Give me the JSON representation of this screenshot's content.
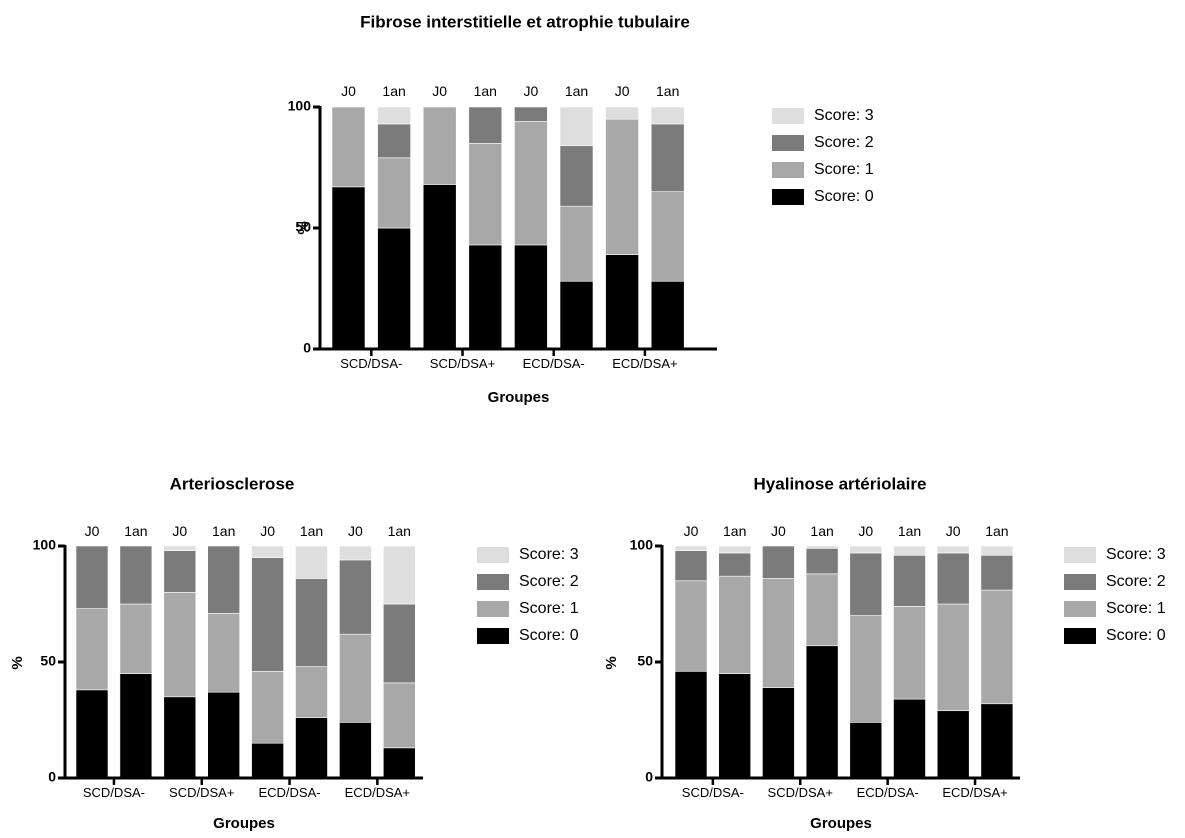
{
  "chart_data": [
    {
      "type": "bar",
      "stacked": true,
      "title": "Fibrose interstitielle et atrophie tubulaire",
      "xlabel": "Groupes",
      "ylabel": "%",
      "ylim": [
        0,
        100
      ],
      "yticks": [
        "0",
        "50",
        "100"
      ],
      "bar_labels": [
        "J0",
        "1an",
        "J0",
        "1an",
        "J0",
        "1an",
        "J0",
        "1an"
      ],
      "groups": [
        "SCD/DSA-",
        "SCD/DSA+",
        "ECD/DSA-",
        "ECD/DSA+"
      ],
      "legend_position": "right",
      "series": [
        {
          "name": "Score: 0",
          "color": "#000000",
          "values": [
            67,
            50,
            68,
            43,
            43,
            28,
            39,
            28
          ]
        },
        {
          "name": "Score: 1",
          "color": "#a8a8a8",
          "values": [
            33,
            29,
            32,
            42,
            51,
            31,
            56,
            37
          ]
        },
        {
          "name": "Score: 2",
          "color": "#7b7b7b",
          "values": [
            0,
            14,
            0,
            15,
            6,
            25,
            0,
            28
          ]
        },
        {
          "name": "Score: 3",
          "color": "#dedede",
          "values": [
            0,
            7,
            0,
            0,
            0,
            16,
            5,
            7
          ]
        }
      ]
    },
    {
      "type": "bar",
      "stacked": true,
      "title": "Arteriosclerose",
      "xlabel": "Groupes",
      "ylabel": "%",
      "ylim": [
        0,
        100
      ],
      "yticks": [
        "0",
        "50",
        "100"
      ],
      "bar_labels": [
        "J0",
        "1an",
        "J0",
        "1an",
        "J0",
        "1an",
        "J0",
        "1an"
      ],
      "groups": [
        "SCD/DSA-",
        "SCD/DSA+",
        "ECD/DSA-",
        "ECD/DSA+"
      ],
      "legend_position": "right",
      "series": [
        {
          "name": "Score: 0",
          "color": "#000000",
          "values": [
            38,
            45,
            35,
            37,
            15,
            26,
            24,
            13
          ]
        },
        {
          "name": "Score: 1",
          "color": "#a8a8a8",
          "values": [
            35,
            30,
            45,
            34,
            31,
            22,
            38,
            28
          ]
        },
        {
          "name": "Score: 2",
          "color": "#7b7b7b",
          "values": [
            27,
            25,
            18,
            29,
            49,
            38,
            32,
            34
          ]
        },
        {
          "name": "Score: 3",
          "color": "#dedede",
          "values": [
            0,
            0,
            2,
            0,
            5,
            14,
            6,
            25
          ]
        }
      ]
    },
    {
      "type": "bar",
      "stacked": true,
      "title": "Hyalinose artériolaire",
      "xlabel": "Groupes",
      "ylabel": "%",
      "ylim": [
        0,
        100
      ],
      "yticks": [
        "0",
        "50",
        "100"
      ],
      "bar_labels": [
        "J0",
        "1an",
        "J0",
        "1an",
        "J0",
        "1an",
        "J0",
        "1an"
      ],
      "groups": [
        "SCD/DSA-",
        "SCD/DSA+",
        "ECD/DSA-",
        "ECD/DSA+"
      ],
      "legend_position": "right",
      "series": [
        {
          "name": "Score: 0",
          "color": "#000000",
          "values": [
            46,
            45,
            39,
            57,
            24,
            34,
            29,
            32
          ]
        },
        {
          "name": "Score: 1",
          "color": "#a8a8a8",
          "values": [
            39,
            42,
            47,
            31,
            46,
            40,
            46,
            49
          ]
        },
        {
          "name": "Score: 2",
          "color": "#7b7b7b",
          "values": [
            13,
            10,
            14,
            11,
            27,
            22,
            22,
            15
          ]
        },
        {
          "name": "Score: 3",
          "color": "#dedede",
          "values": [
            2,
            3,
            0,
            1,
            3,
            4,
            3,
            4
          ]
        }
      ]
    }
  ]
}
